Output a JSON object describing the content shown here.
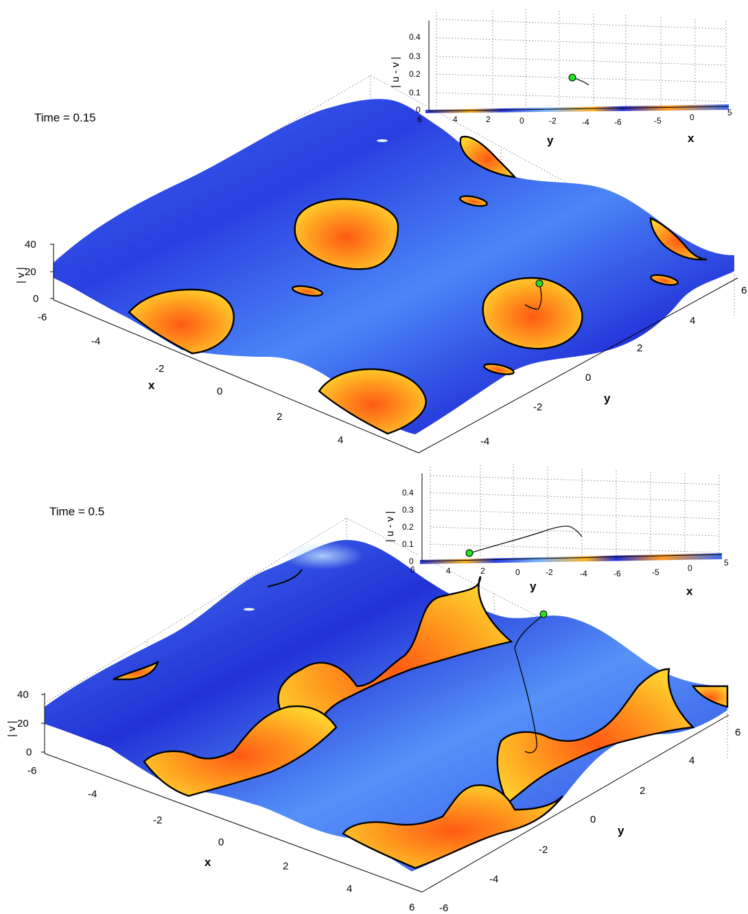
{
  "chart_data": [
    {
      "type": "surface",
      "time_label": "Time = 0.15",
      "zlabel": "| v |",
      "xlabel": "x",
      "ylabel": "y",
      "z_ticks": [
        "0",
        "20",
        "40"
      ],
      "x_ticks": [
        "-6",
        "-4",
        "-2",
        "0",
        "2",
        "4"
      ],
      "y_ticks": [
        "-4",
        "-2",
        "0",
        "2",
        "4",
        "6"
      ],
      "xlim": [
        -6,
        6
      ],
      "ylim": [
        -6,
        6
      ],
      "zlim": [
        0,
        40
      ],
      "colormap": [
        "#1a1ad8",
        "#3c6ef5",
        "#8fc4ff",
        "#ffd22e",
        "#ff9a1e",
        "#ff5a14"
      ],
      "marker_color": "#22e022",
      "inset": {
        "zlabel": "| u - v |",
        "xlabel": "x",
        "ylabel": "y",
        "z_ticks": [
          "0",
          "0.1",
          "0.2",
          "0.3",
          "0.4"
        ],
        "y_ticks": [
          "6",
          "4",
          "2",
          "0",
          "-2",
          "-4",
          "-6"
        ],
        "x_ticks": [
          "-5",
          "0",
          "5"
        ],
        "zlim": [
          0,
          0.45
        ],
        "marker_value": 0.18
      }
    },
    {
      "type": "surface",
      "time_label": "Time = 0.5",
      "zlabel": "| v |",
      "xlabel": "x",
      "ylabel": "y",
      "z_ticks": [
        "0",
        "20",
        "40"
      ],
      "x_ticks": [
        "-6",
        "-4",
        "-2",
        "0",
        "2",
        "4",
        "6"
      ],
      "y_ticks": [
        "-6",
        "-4",
        "-2",
        "0",
        "2",
        "4",
        "6"
      ],
      "xlim": [
        -6,
        6
      ],
      "ylim": [
        -6,
        6
      ],
      "zlim": [
        0,
        40
      ],
      "colormap": [
        "#1a1ad8",
        "#3c6ef5",
        "#8fc4ff",
        "#ffd22e",
        "#ff9a1e",
        "#ff5a14"
      ],
      "marker_color": "#22e022",
      "inset": {
        "zlabel": "| u - v |",
        "xlabel": "x",
        "ylabel": "y",
        "z_ticks": [
          "0",
          "0.1",
          "0.2",
          "0.3",
          "0.4"
        ],
        "y_ticks": [
          "6",
          "4",
          "2",
          "0",
          "-2",
          "-4",
          "-6"
        ],
        "x_ticks": [
          "-5",
          "0",
          "5"
        ],
        "zlim": [
          0,
          0.45
        ],
        "marker_value": 0.04,
        "trajectory_peak": 0.2
      }
    }
  ]
}
